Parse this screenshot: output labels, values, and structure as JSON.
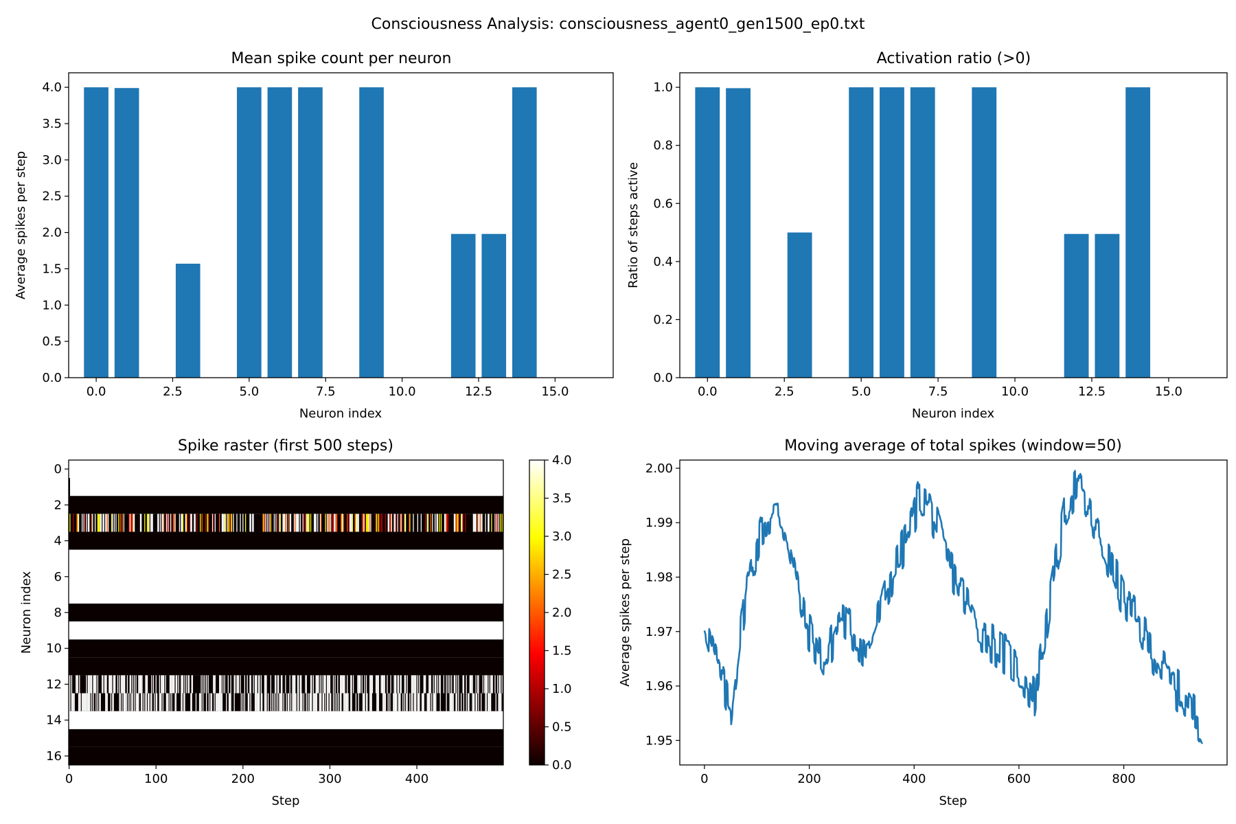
{
  "figure": {
    "suptitle": "Consciousness Analysis: consciousness_agent0_gen1500_ep0.txt"
  },
  "colors": {
    "bar": "#1f77b4",
    "line": "#1f77b4",
    "raster_colormap": "hot"
  },
  "chart_data": [
    {
      "type": "bar",
      "title": "Mean spike count per neuron",
      "xlabel": "Neuron index",
      "ylabel": "Average spikes per step",
      "x": [
        0,
        1,
        2,
        3,
        4,
        5,
        6,
        7,
        8,
        9,
        10,
        11,
        12,
        13,
        14,
        15,
        16
      ],
      "values": [
        4.0,
        3.99,
        0,
        1.57,
        0,
        4.0,
        4.0,
        4.0,
        0,
        4.0,
        0,
        0,
        1.98,
        1.98,
        4.0,
        0,
        0
      ],
      "xlim": [
        -0.9,
        16.9
      ],
      "ylim": [
        0,
        4.2
      ],
      "xticks": [
        0.0,
        2.5,
        5.0,
        7.5,
        10.0,
        12.5,
        15.0
      ],
      "xtick_labels": [
        "0.0",
        "2.5",
        "5.0",
        "7.5",
        "10.0",
        "12.5",
        "15.0"
      ],
      "yticks": [
        0.0,
        0.5,
        1.0,
        1.5,
        2.0,
        2.5,
        3.0,
        3.5,
        4.0
      ],
      "ytick_labels": [
        "0.0",
        "0.5",
        "1.0",
        "1.5",
        "2.0",
        "2.5",
        "3.0",
        "3.5",
        "4.0"
      ]
    },
    {
      "type": "bar",
      "title": "Activation ratio (>0)",
      "xlabel": "Neuron index",
      "ylabel": "Ratio of steps active",
      "x": [
        0,
        1,
        2,
        3,
        4,
        5,
        6,
        7,
        8,
        9,
        10,
        11,
        12,
        13,
        14,
        15,
        16
      ],
      "values": [
        1.0,
        0.997,
        0,
        0.5,
        0,
        1.0,
        1.0,
        1.0,
        0,
        1.0,
        0,
        0,
        0.495,
        0.495,
        1.0,
        0,
        0
      ],
      "xlim": [
        -0.9,
        16.9
      ],
      "ylim": [
        0,
        1.05
      ],
      "xticks": [
        0.0,
        2.5,
        5.0,
        7.5,
        10.0,
        12.5,
        15.0
      ],
      "xtick_labels": [
        "0.0",
        "2.5",
        "5.0",
        "7.5",
        "10.0",
        "12.5",
        "15.0"
      ],
      "yticks": [
        0.0,
        0.2,
        0.4,
        0.6,
        0.8,
        1.0
      ],
      "ytick_labels": [
        "0.0",
        "0.2",
        "0.4",
        "0.6",
        "0.8",
        "1.0"
      ]
    },
    {
      "type": "heatmap",
      "title": "Spike raster (first 500 steps)",
      "xlabel": "Step",
      "ylabel": "Neuron index",
      "steps": 500,
      "neurons": 17,
      "xticks": [
        0,
        100,
        200,
        300,
        400
      ],
      "xtick_labels": [
        "0",
        "100",
        "200",
        "300",
        "400"
      ],
      "yticks": [
        0,
        2,
        4,
        6,
        8,
        10,
        12,
        14,
        16
      ],
      "ytick_labels": [
        "0",
        "2",
        "4",
        "6",
        "8",
        "10",
        "12",
        "14",
        "16"
      ],
      "colorbar_range": [
        0,
        4
      ],
      "colorbar_ticks": [
        0.0,
        0.5,
        1.0,
        1.5,
        2.0,
        2.5,
        3.0,
        3.5,
        4.0
      ],
      "colorbar_tick_labels": [
        "0.0",
        "0.5",
        "1.0",
        "1.5",
        "2.0",
        "2.5",
        "3.0",
        "3.5",
        "4.0"
      ],
      "rows": [
        {
          "neurons": [
            0,
            1
          ],
          "pattern": "constant",
          "value": 4,
          "note_step0": 0
        },
        {
          "neurons": [
            2,
            4,
            8,
            10,
            11,
            15,
            16
          ],
          "pattern": "constant",
          "value": 0
        },
        {
          "neurons": [
            3
          ],
          "pattern": "spikes_1_to_4",
          "active_ratio": 0.5
        },
        {
          "neurons": [
            5,
            6,
            7,
            9,
            14
          ],
          "pattern": "constant",
          "value": 4
        },
        {
          "neurons": [
            12,
            13
          ],
          "pattern": "spikes_4",
          "active_ratio": 0.495
        }
      ]
    },
    {
      "type": "line",
      "title": "Moving average of total spikes (window=50)",
      "xlabel": "Step",
      "ylabel": "Average spikes per step",
      "x_range": [
        0,
        950
      ],
      "xlim": [
        -47,
        997
      ],
      "ylim": [
        1.9455,
        2.0015
      ],
      "xticks": [
        0,
        200,
        400,
        600,
        800
      ],
      "xtick_labels": [
        "0",
        "200",
        "400",
        "600",
        "800"
      ],
      "yticks": [
        1.95,
        1.96,
        1.97,
        1.98,
        1.99,
        2.0
      ],
      "ytick_labels": [
        "1.95",
        "1.96",
        "1.97",
        "1.98",
        "1.99",
        "2.00"
      ],
      "trend": {
        "x": [
          0,
          50,
          80,
          110,
          140,
          160,
          190,
          230,
          260,
          310,
          350,
          390,
          410,
          430,
          460,
          520,
          590,
          630,
          650,
          690,
          710,
          740,
          800,
          880,
          950
        ],
        "y": [
          1.972,
          1.955,
          1.978,
          1.989,
          1.992,
          1.987,
          1.972,
          1.964,
          1.973,
          1.966,
          1.978,
          1.988,
          1.995,
          1.993,
          1.984,
          1.971,
          1.964,
          1.958,
          1.97,
          1.993,
          1.997,
          1.99,
          1.976,
          1.962,
          1.953
        ]
      },
      "noise_amplitude": 0.004
    }
  ]
}
